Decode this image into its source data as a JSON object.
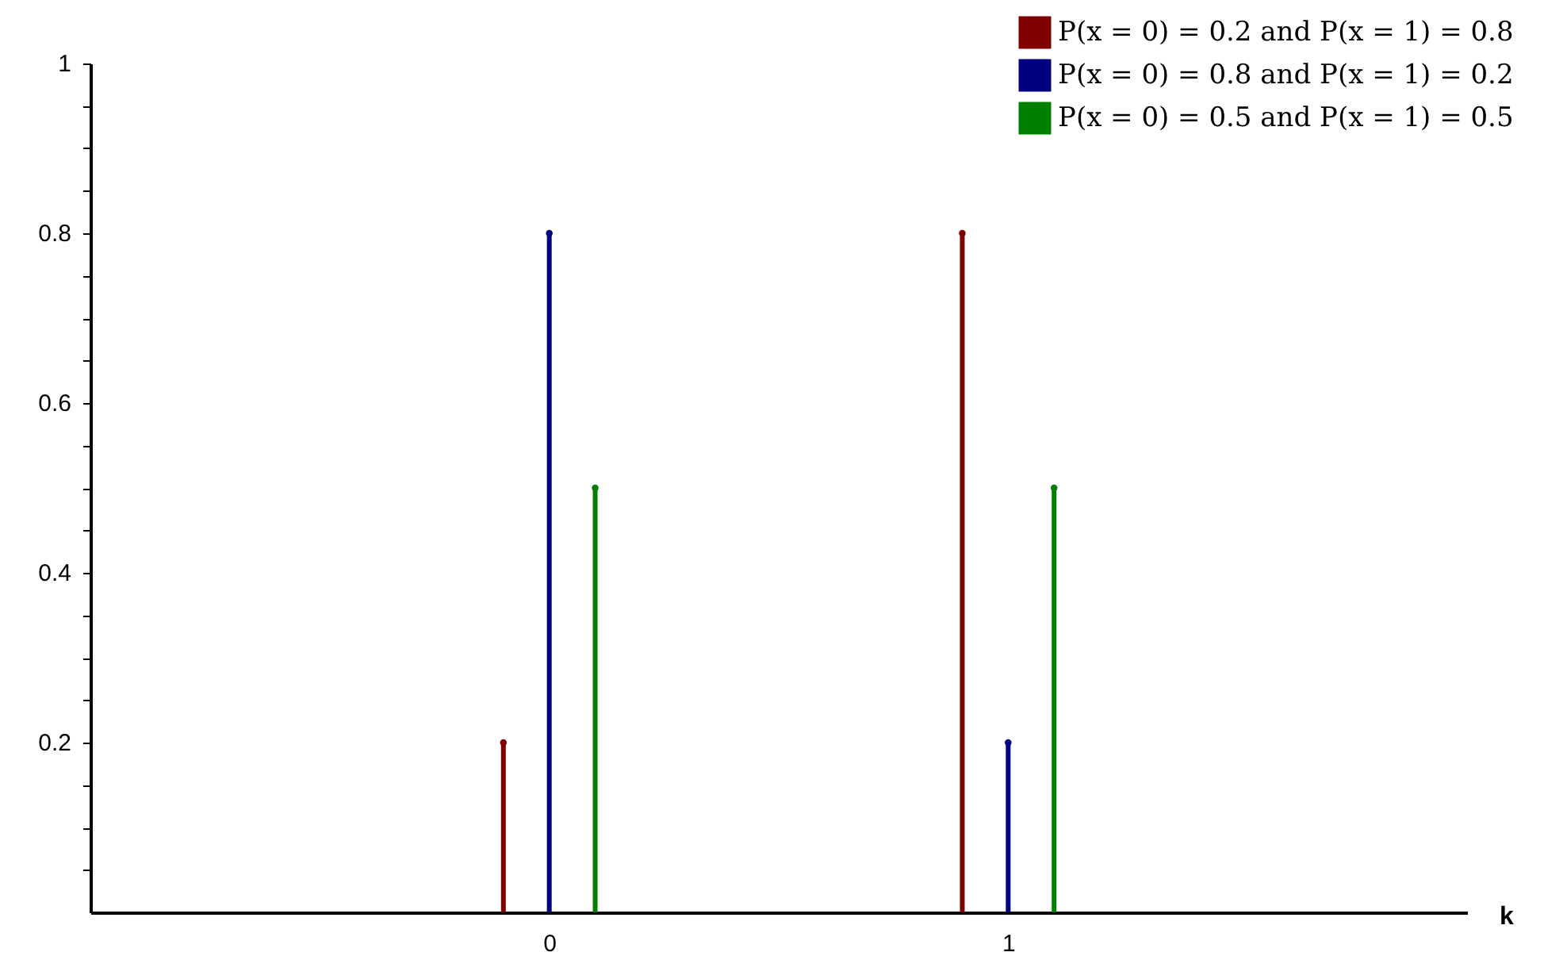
{
  "chart_data": {
    "type": "lollipop",
    "xlabel": "k",
    "xlim": [
      -1,
      2
    ],
    "xticks": [
      0,
      1
    ],
    "ylim": [
      0,
      1
    ],
    "yticks": [
      {
        "value": 0.05,
        "label": null
      },
      {
        "value": 0.1,
        "label": null
      },
      {
        "value": 0.15,
        "label": null
      },
      {
        "value": 0.2,
        "label": "0.2"
      },
      {
        "value": 0.25,
        "label": null
      },
      {
        "value": 0.3,
        "label": null
      },
      {
        "value": 0.35,
        "label": null
      },
      {
        "value": 0.4,
        "label": "0.4"
      },
      {
        "value": 0.45,
        "label": null
      },
      {
        "value": 0.5,
        "label": null
      },
      {
        "value": 0.55,
        "label": null
      },
      {
        "value": 0.6,
        "label": "0.6"
      },
      {
        "value": 0.65,
        "label": null
      },
      {
        "value": 0.7,
        "label": null
      },
      {
        "value": 0.75,
        "label": null
      },
      {
        "value": 0.8,
        "label": "0.8"
      },
      {
        "value": 0.85,
        "label": null
      },
      {
        "value": 0.9,
        "label": null
      },
      {
        "value": 0.95,
        "label": null
      },
      {
        "value": 1,
        "label": "1"
      }
    ],
    "legend": "top right",
    "marker": "circle",
    "grid": false,
    "series": [
      {
        "name": "P(x = 0) = 0.2 and P(x = 1) = 0.8",
        "color": "#800000",
        "x": [
          -0.1,
          0.9
        ],
        "values": [
          0.2,
          0.8
        ]
      },
      {
        "name": "P(x = 0) = 0.8 and P(x = 1) = 0.2",
        "color": "#000080",
        "x": [
          0,
          1
        ],
        "values": [
          0.8,
          0.2
        ]
      },
      {
        "name": "P(x = 0) = 0.5 and P(x = 1) = 0.5",
        "color": "#008000",
        "x": [
          0.1,
          1.1
        ],
        "values": [
          0.5,
          0.5
        ]
      }
    ]
  }
}
